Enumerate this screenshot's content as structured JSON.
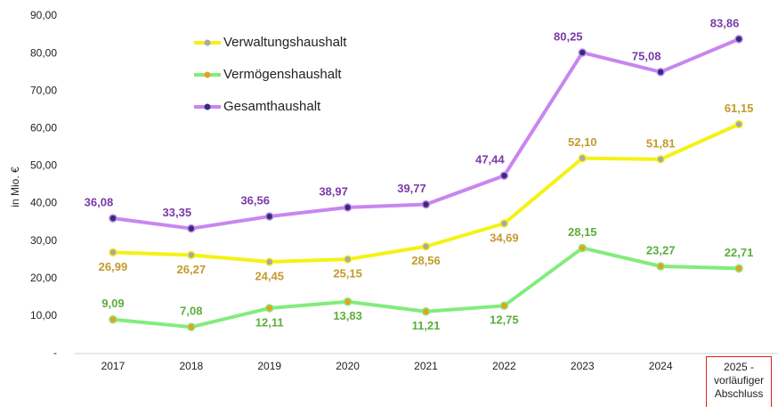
{
  "chart_data": {
    "type": "line",
    "y_axis_label": "in Mio. €",
    "categories": [
      "2017",
      "2018",
      "2019",
      "2020",
      "2021",
      "2022",
      "2023",
      "2024",
      "2025 - vorläufiger Abschluss"
    ],
    "series": [
      {
        "name": "Verwaltungshaushalt",
        "color": "#f5f214",
        "marker_color": "#a8a8a8",
        "label_color": "#c49a2c",
        "values": [
          26.99,
          26.27,
          24.45,
          25.15,
          28.56,
          34.69,
          52.1,
          51.81,
          61.15
        ],
        "value_labels": [
          "26,99",
          "26,27",
          "24,45",
          "25,15",
          "28,56",
          "34,69",
          "52,10",
          "51,81",
          "61,15"
        ]
      },
      {
        "name": "Vermögenshaushalt",
        "color": "#82ec7c",
        "marker_color": "#e8a020",
        "label_color": "#5cae3c",
        "values": [
          9.09,
          7.08,
          12.11,
          13.83,
          11.21,
          12.75,
          28.15,
          23.27,
          22.71
        ],
        "value_labels": [
          "9,09",
          "7,08",
          "12,11",
          "13,83",
          "11,21",
          "12,75",
          "28,15",
          "23,27",
          "22,71"
        ]
      },
      {
        "name": "Gesamthaushalt",
        "color": "#c886f0",
        "marker_color": "#30307a",
        "label_color": "#7a3aa8",
        "values": [
          36.08,
          33.35,
          36.56,
          38.97,
          39.77,
          47.44,
          80.25,
          75.08,
          83.86
        ],
        "value_labels": [
          "36,08",
          "33,35",
          "36,56",
          "38,97",
          "39,77",
          "47,44",
          "80,25",
          "75,08",
          "83,86"
        ]
      }
    ],
    "ylim": [
      0,
      90
    ],
    "yticks": [
      {
        "value": 0,
        "label": "-"
      },
      {
        "value": 10,
        "label": "10,00"
      },
      {
        "value": 20,
        "label": "20,00"
      },
      {
        "value": 30,
        "label": "30,00"
      },
      {
        "value": 40,
        "label": "40,00"
      },
      {
        "value": 50,
        "label": "50,00"
      },
      {
        "value": 60,
        "label": "60,00"
      },
      {
        "value": 70,
        "label": "70,00"
      },
      {
        "value": 80,
        "label": "80,00"
      },
      {
        "value": 90,
        "label": "90,00"
      }
    ],
    "legend": "top-left",
    "highlight_category": 8,
    "highlight_color": "#e02020"
  }
}
